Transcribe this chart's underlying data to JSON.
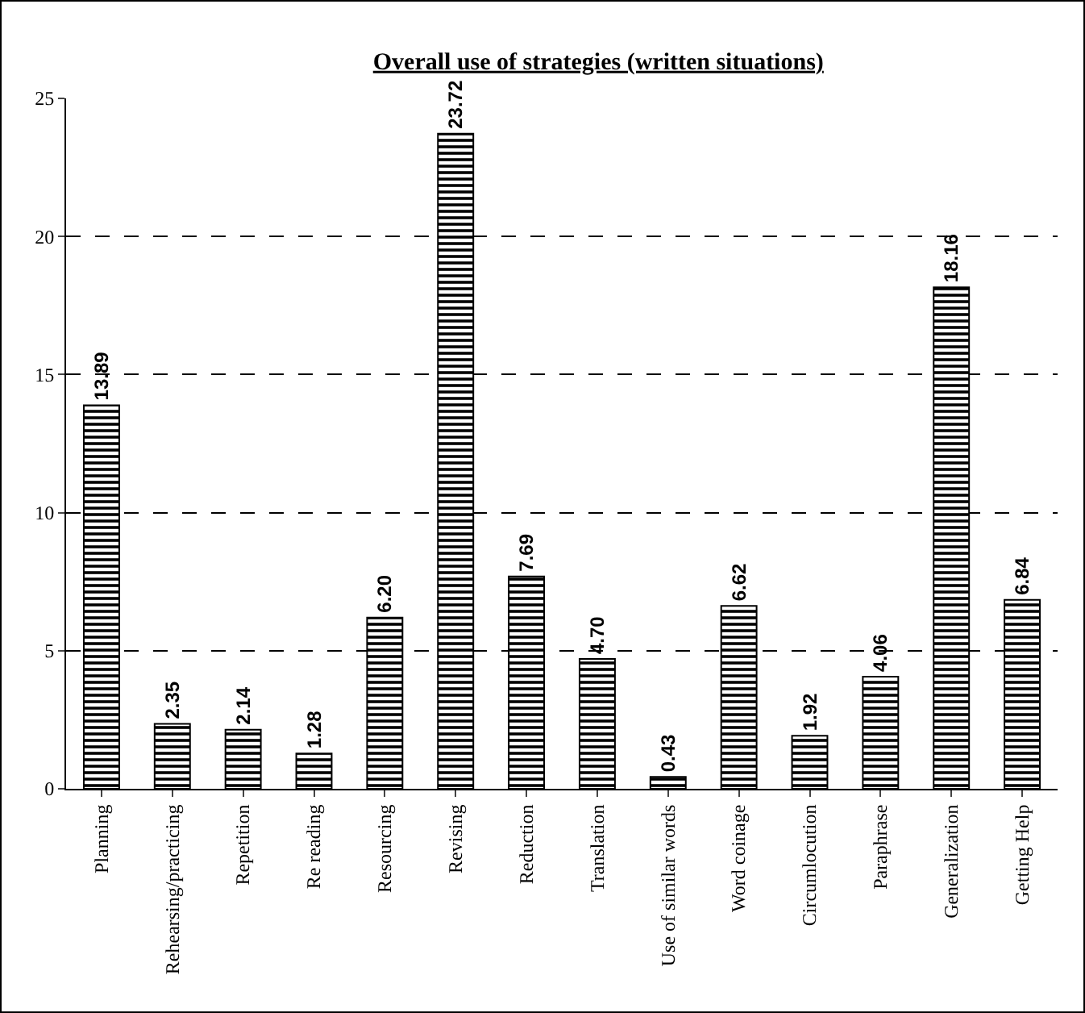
{
  "chart_data": {
    "type": "bar",
    "title": "Overall use of strategies (written situations)",
    "categories": [
      "Planning",
      "Rehearsing/practicing",
      "Repetition",
      "Re reading",
      "Resourcing",
      "Revising",
      "Reduction",
      "Translation",
      "Use of similar words",
      "Word coinage",
      "Circumlocution",
      "Paraphrase",
      "Generalization",
      "Getting Help"
    ],
    "values": [
      13.89,
      2.35,
      2.14,
      1.28,
      6.2,
      23.72,
      7.69,
      4.7,
      0.43,
      6.62,
      1.92,
      4.06,
      18.16,
      6.84
    ],
    "value_labels": [
      "13.89",
      "2.35",
      "2.14",
      "1.28",
      "6.20",
      "23.72",
      "7.69",
      "4.70",
      "0.43",
      "6.62",
      "1.92",
      "4.06",
      "18.16",
      "6.84"
    ],
    "color": "#000000",
    "ylim": [
      0,
      25
    ],
    "yticks": [
      0,
      5,
      10,
      15,
      20,
      25
    ],
    "grid": "y",
    "legend": false
  }
}
